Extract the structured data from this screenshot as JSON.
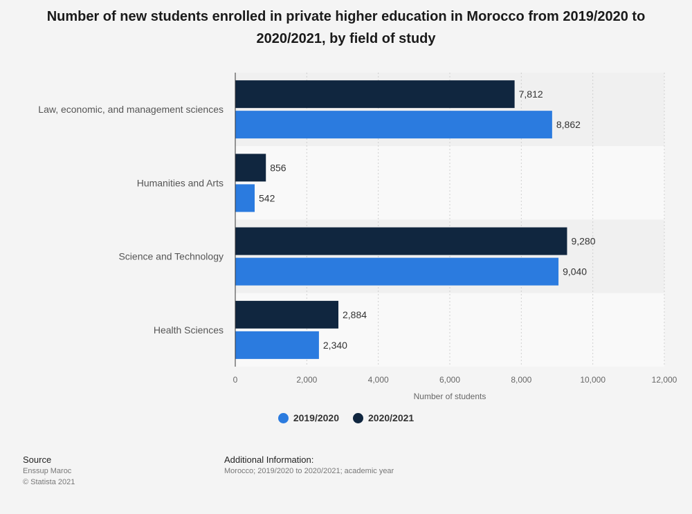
{
  "title": "Number of new students enrolled in private higher education in Morocco from 2019/2020 to 2020/2021, by field of study",
  "chart_data": {
    "type": "bar",
    "orientation": "horizontal",
    "categories": [
      "Law, economic, and management sciences",
      "Humanities and Arts",
      "Science and Technology",
      "Health Sciences"
    ],
    "series": [
      {
        "name": "2020/2021",
        "color": "#10263f",
        "values": [
          7812,
          856,
          9280,
          2884
        ]
      },
      {
        "name": "2019/2020",
        "color": "#2b7bdf",
        "values": [
          8862,
          542,
          9040,
          2340
        ]
      }
    ],
    "value_labels": {
      "2020/2021": [
        "7,812",
        "856",
        "9,280",
        "2,884"
      ],
      "2019/2020": [
        "8,862",
        "542",
        "9,040",
        "2,340"
      ]
    },
    "xlabel": "Number of students",
    "ylabel": "",
    "xlim": [
      0,
      12000
    ],
    "xticks": [
      0,
      2000,
      4000,
      6000,
      8000,
      10000,
      12000
    ],
    "xtick_labels": [
      "0",
      "2,000",
      "4,000",
      "6,000",
      "8,000",
      "10,000",
      "12,000"
    ],
    "grid": true,
    "legend_position": "bottom"
  },
  "legend": [
    {
      "label": "2019/2020",
      "color": "#2b7bdf"
    },
    {
      "label": "2020/2021",
      "color": "#10263f"
    }
  ],
  "source": {
    "heading": "Source",
    "line1": "Enssup Maroc",
    "line2": "© Statista 2021"
  },
  "additional_info": {
    "heading": "Additional Information:",
    "text": "Morocco; 2019/2020 to 2020/2021; academic year"
  }
}
